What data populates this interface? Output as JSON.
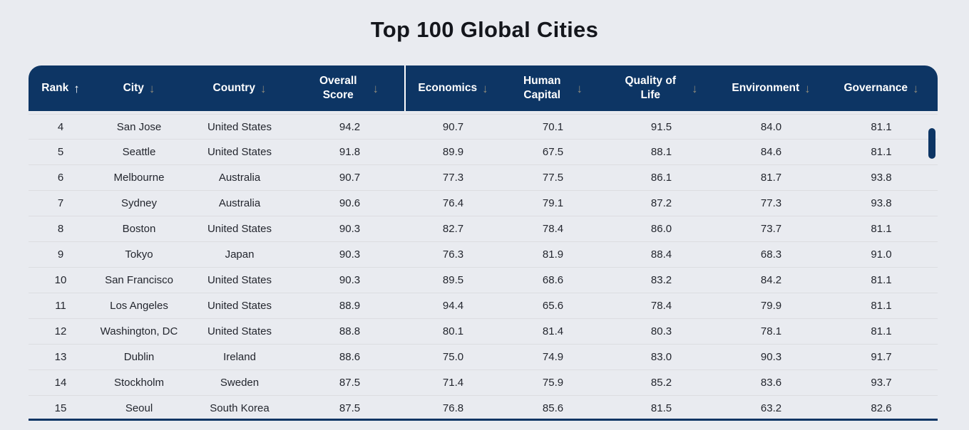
{
  "page": {
    "title": "Top 100 Global Cities"
  },
  "colors": {
    "background": "#e9ebf0",
    "header_background": "#0d3564",
    "header_text": "#ffffff",
    "active_sort_arrow": "#ffffff",
    "inactive_sort_arrow": "#8e8a7a",
    "row_text": "#23262e",
    "row_divider": "#dcdde1",
    "table_bottom_border": "#0d3564",
    "scrollbar_thumb": "#0d3564",
    "header_group_divider": "#ffffff"
  },
  "icons": {
    "sort_ascending": "↑",
    "sort_descending": "↓"
  },
  "table": {
    "columns": [
      {
        "id": "rank",
        "label": "Rank",
        "lines": [
          "Rank"
        ],
        "sort_direction": "asc",
        "sort_active": true,
        "group_divider": false
      },
      {
        "id": "city",
        "label": "City",
        "lines": [
          "City"
        ],
        "sort_direction": "desc",
        "sort_active": false,
        "group_divider": false
      },
      {
        "id": "country",
        "label": "Country",
        "lines": [
          "Country"
        ],
        "sort_direction": "desc",
        "sort_active": false,
        "group_divider": false
      },
      {
        "id": "overall-score",
        "label": "Overall Score",
        "lines": [
          "Overall",
          "Score"
        ],
        "sort_direction": "desc",
        "sort_active": false,
        "group_divider": true
      },
      {
        "id": "economics",
        "label": "Economics",
        "lines": [
          "Economics"
        ],
        "sort_direction": "desc",
        "sort_active": false,
        "group_divider": false
      },
      {
        "id": "human-capital",
        "label": "Human Capital",
        "lines": [
          "Human",
          "Capital"
        ],
        "sort_direction": "desc",
        "sort_active": false,
        "group_divider": false
      },
      {
        "id": "quality-of-life",
        "label": "Quality of Life",
        "lines": [
          "Quality of",
          "Life"
        ],
        "sort_direction": "desc",
        "sort_active": false,
        "group_divider": false
      },
      {
        "id": "environment",
        "label": "Environment",
        "lines": [
          "Environment"
        ],
        "sort_direction": "desc",
        "sort_active": false,
        "group_divider": false
      },
      {
        "id": "governance",
        "label": "Governance",
        "lines": [
          "Governance"
        ],
        "sort_direction": "desc",
        "sort_active": false,
        "group_divider": false
      }
    ],
    "rows": [
      [
        "4",
        "San Jose",
        "United States",
        "94.2",
        "90.7",
        "70.1",
        "91.5",
        "84.0",
        "81.1"
      ],
      [
        "5",
        "Seattle",
        "United States",
        "91.8",
        "89.9",
        "67.5",
        "88.1",
        "84.6",
        "81.1"
      ],
      [
        "6",
        "Melbourne",
        "Australia",
        "90.7",
        "77.3",
        "77.5",
        "86.1",
        "81.7",
        "93.8"
      ],
      [
        "7",
        "Sydney",
        "Australia",
        "90.6",
        "76.4",
        "79.1",
        "87.2",
        "77.3",
        "93.8"
      ],
      [
        "8",
        "Boston",
        "United States",
        "90.3",
        "82.7",
        "78.4",
        "86.0",
        "73.7",
        "81.1"
      ],
      [
        "9",
        "Tokyo",
        "Japan",
        "90.3",
        "76.3",
        "81.9",
        "88.4",
        "68.3",
        "91.0"
      ],
      [
        "10",
        "San Francisco",
        "United States",
        "90.3",
        "89.5",
        "68.6",
        "83.2",
        "84.2",
        "81.1"
      ],
      [
        "11",
        "Los Angeles",
        "United States",
        "88.9",
        "94.4",
        "65.6",
        "78.4",
        "79.9",
        "81.1"
      ],
      [
        "12",
        "Washington, DC",
        "United States",
        "88.8",
        "80.1",
        "81.4",
        "80.3",
        "78.1",
        "81.1"
      ],
      [
        "13",
        "Dublin",
        "Ireland",
        "88.6",
        "75.0",
        "74.9",
        "83.0",
        "90.3",
        "91.7"
      ],
      [
        "14",
        "Stockholm",
        "Sweden",
        "87.5",
        "71.4",
        "75.9",
        "85.2",
        "83.6",
        "93.7"
      ],
      [
        "15",
        "Seoul",
        "South Korea",
        "87.5",
        "76.8",
        "85.6",
        "81.5",
        "63.2",
        "82.6"
      ]
    ]
  }
}
